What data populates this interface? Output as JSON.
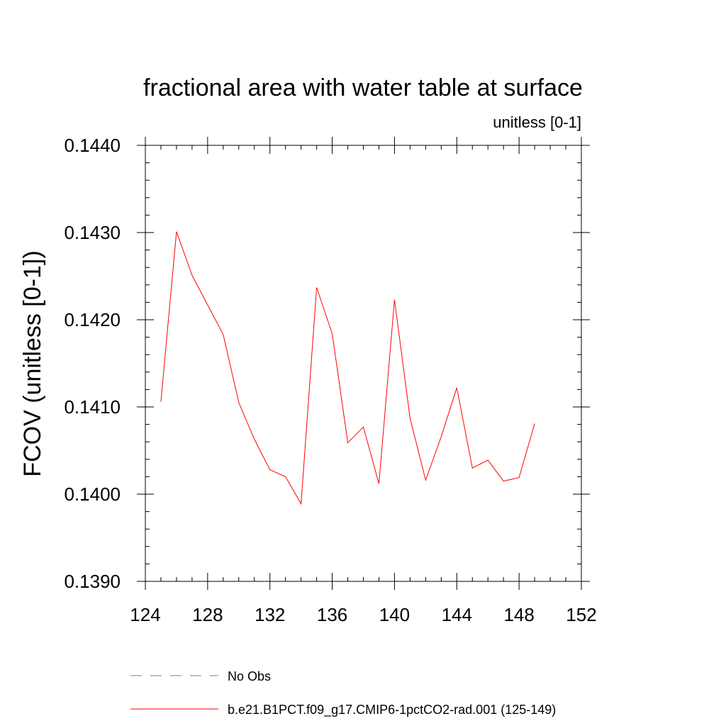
{
  "chart_data": {
    "type": "line",
    "title": "fractional area with water table at surface",
    "subtitle": "unitless [0-1]",
    "xlabel": "",
    "ylabel": "FCOV  (unitless [0-1])",
    "xlim": [
      124,
      152
    ],
    "ylim": [
      0.139,
      0.144
    ],
    "x_ticks": [
      124,
      128,
      132,
      136,
      140,
      144,
      148,
      152
    ],
    "y_ticks": [
      "0.1390",
      "0.1400",
      "0.1410",
      "0.1420",
      "0.1430",
      "0.1440"
    ],
    "y_tick_values": [
      0.139,
      0.14,
      0.141,
      0.142,
      0.143,
      0.144
    ],
    "grid": false,
    "legend_position": "bottom",
    "series": [
      {
        "name": "b.e21.B1PCT.f09_g17.CMIP6-1pctCO2-rad.001 (125-149)",
        "color": "#ff0000",
        "style": "solid",
        "x": [
          125,
          126,
          127,
          128,
          129,
          130,
          131,
          132,
          133,
          134,
          135,
          136,
          137,
          138,
          139,
          140,
          141,
          142,
          143,
          144,
          145,
          146,
          147,
          148,
          149
        ],
        "values": [
          0.14106,
          0.14301,
          0.14251,
          0.14217,
          0.14183,
          0.14105,
          0.14063,
          0.14028,
          0.1402,
          0.13989,
          0.14237,
          0.14184,
          0.14059,
          0.14077,
          0.14012,
          0.14223,
          0.14087,
          0.14016,
          0.14066,
          0.14122,
          0.1403,
          0.14039,
          0.14015,
          0.14019,
          0.14081
        ]
      }
    ],
    "legend": [
      {
        "label": "No Obs",
        "color": "#7b6fd6",
        "style": "dashed"
      },
      {
        "label": "b.e21.B1PCT.f09_g17.CMIP6-1pctCO2-rad.001 (125-149)",
        "color": "#ff0000",
        "style": "solid"
      }
    ]
  }
}
